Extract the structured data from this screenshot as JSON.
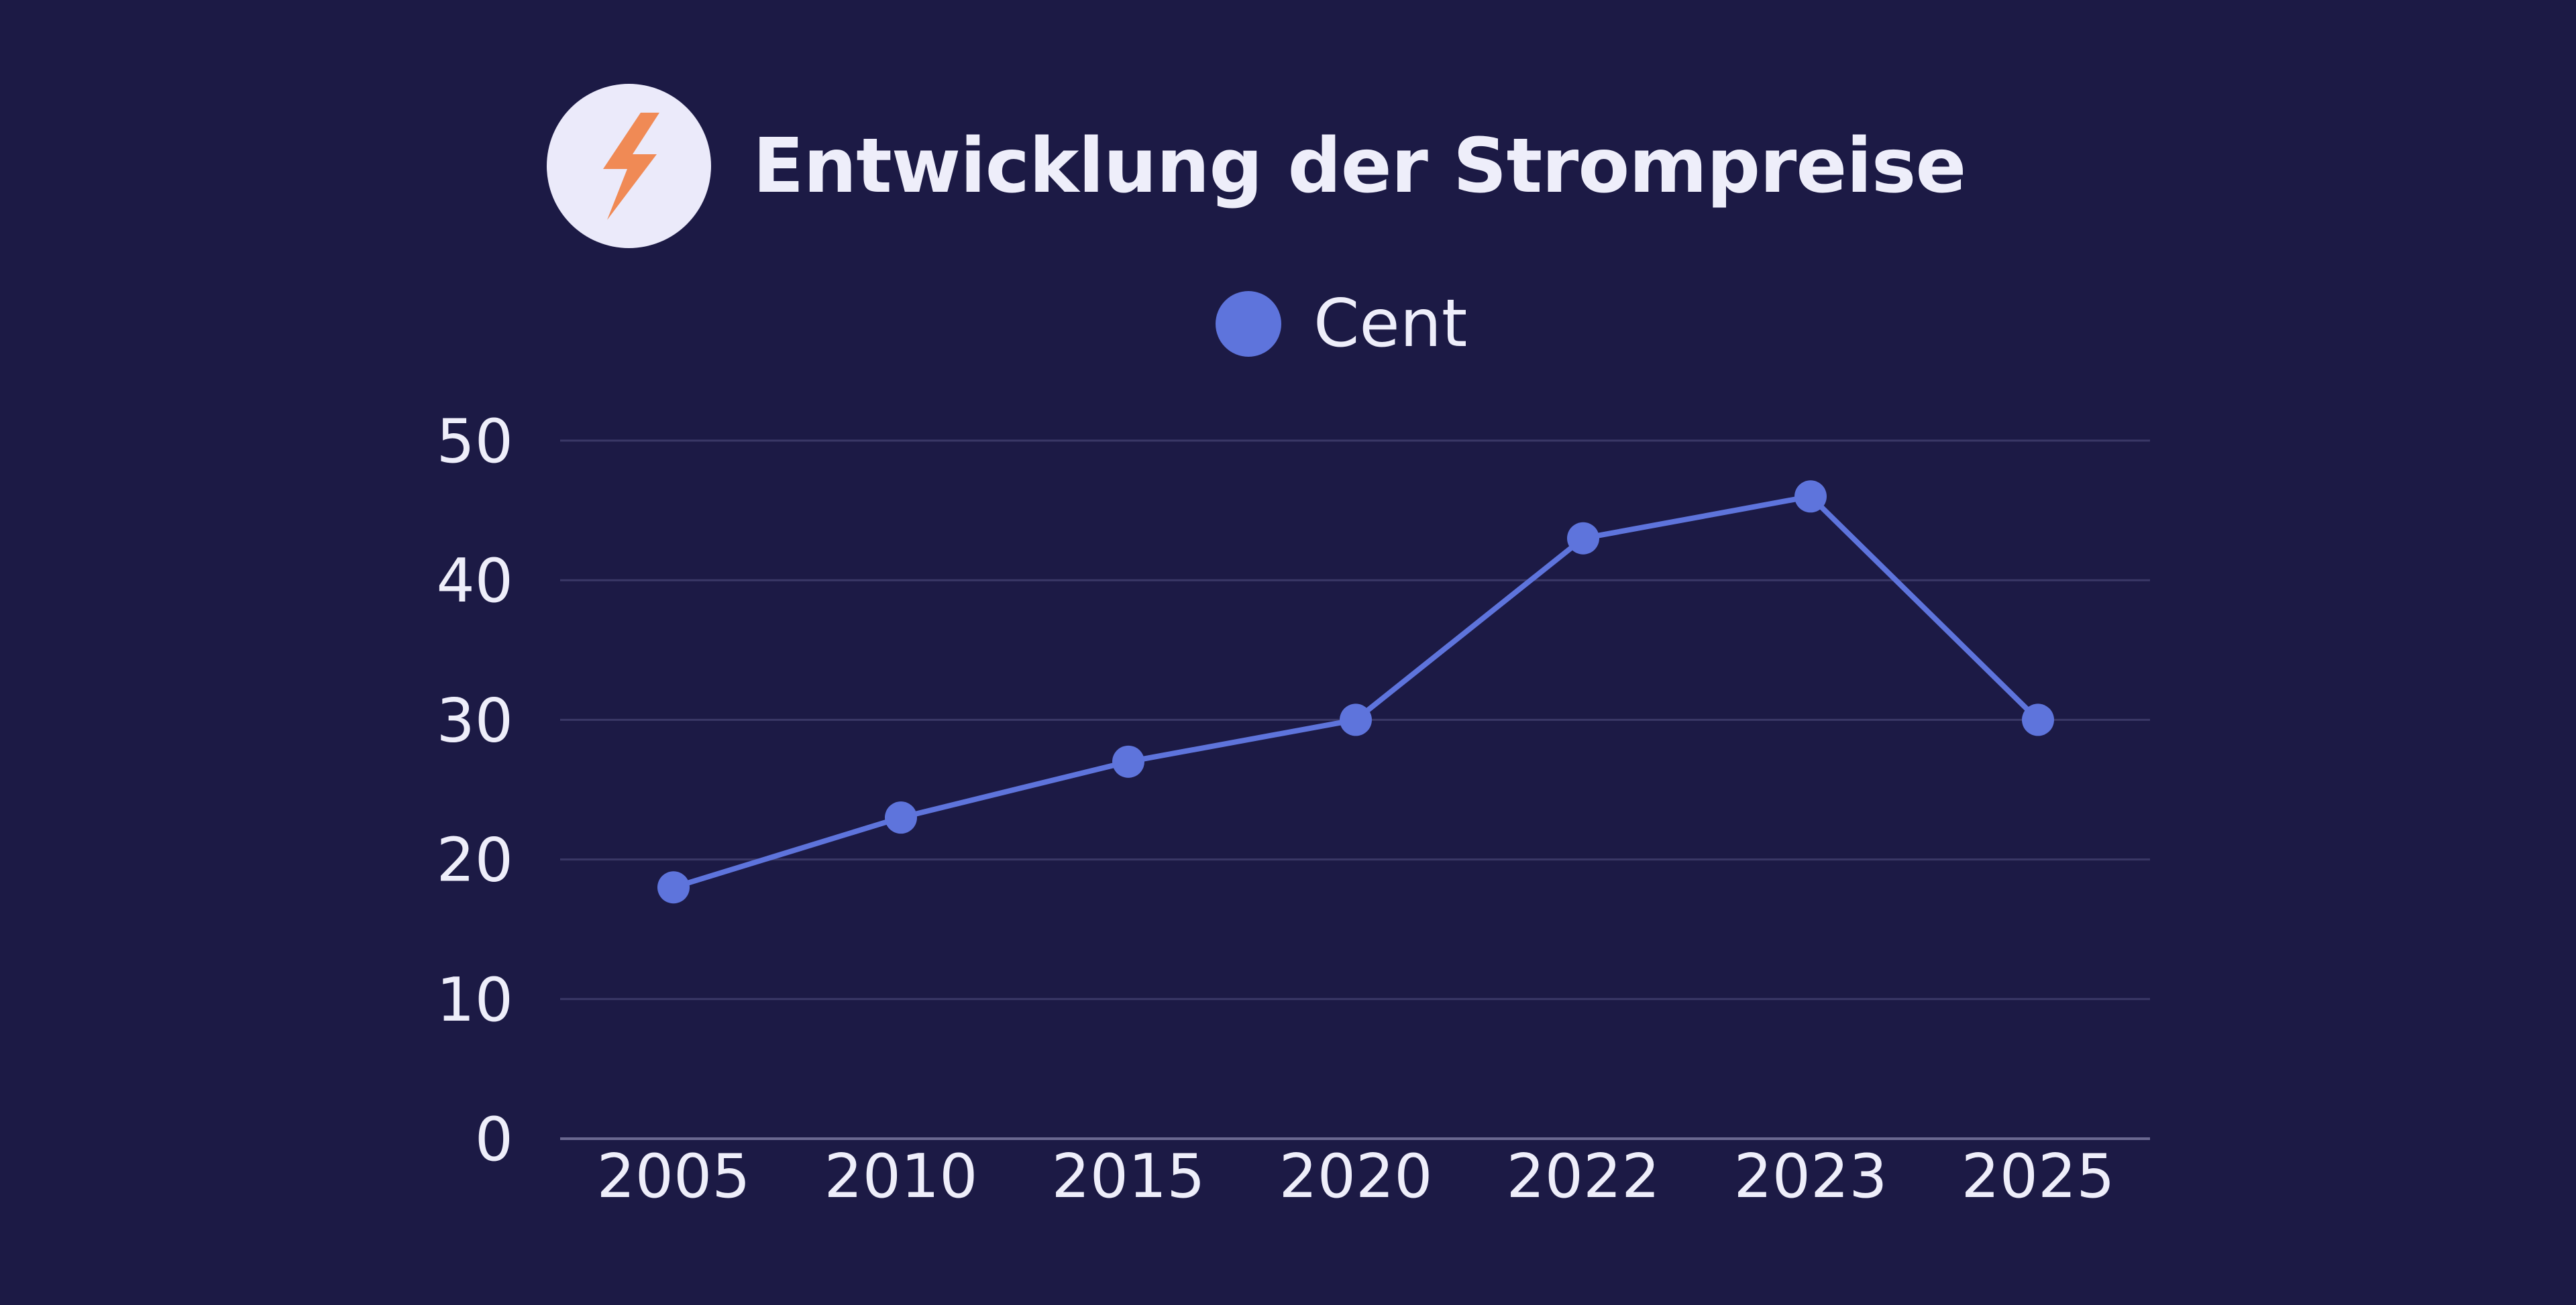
{
  "header": {
    "icon": "lightning-bolt-icon",
    "title": "Entwicklung der Strompreise"
  },
  "colors": {
    "background": "#1c1a45",
    "series": "#5e74dc",
    "icon_bolt": "#f08a55",
    "icon_circle": "#ebeafa",
    "text": "#eeeefa",
    "grid": "#3a3866"
  },
  "chart_data": {
    "type": "line",
    "title": "Entwicklung der Strompreise",
    "xlabel": "",
    "ylabel": "",
    "categories": [
      "2005",
      "2010",
      "2015",
      "2020",
      "2022",
      "2023",
      "2025"
    ],
    "series": [
      {
        "name": "Cent",
        "values": [
          18,
          23,
          27,
          30,
          43,
          46,
          30
        ]
      }
    ],
    "ylim": [
      0,
      50
    ],
    "yticks": [
      0,
      10,
      20,
      30,
      40,
      50
    ],
    "grid": true,
    "legend": "top-center",
    "markers": true
  }
}
